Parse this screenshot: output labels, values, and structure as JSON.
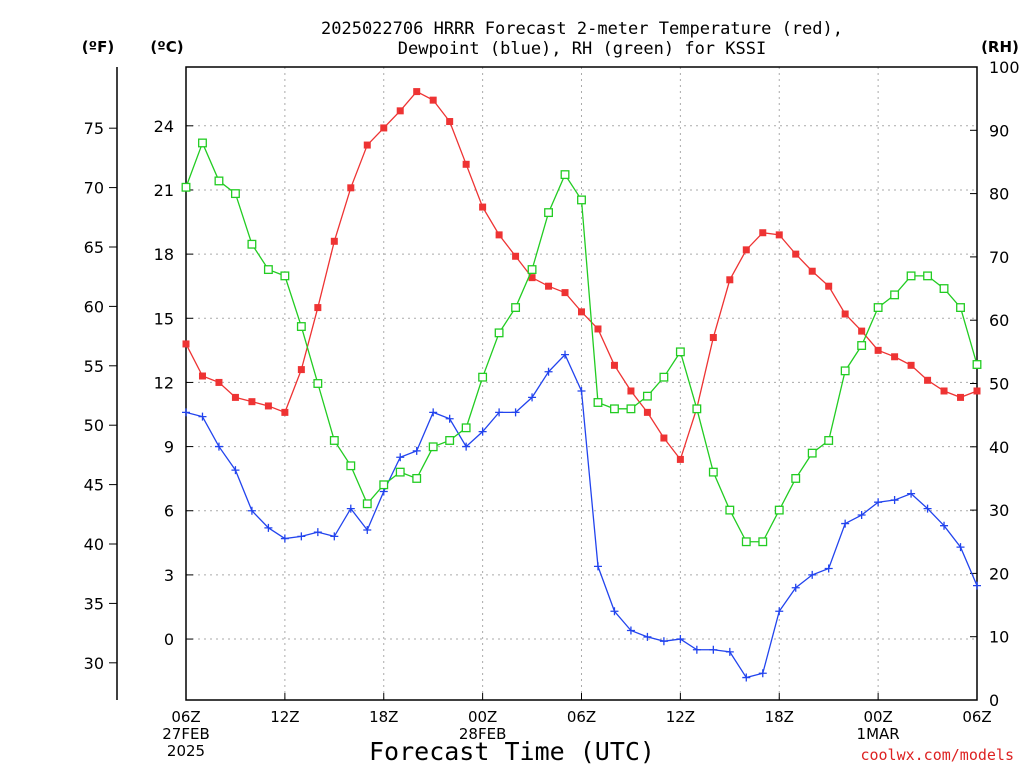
{
  "chart_data": {
    "type": "line",
    "title_line1": "2025022706 HRRR Forecast 2-meter Temperature (red),",
    "title_line2": "Dewpoint (blue), RH (green) for KSSI",
    "xlabel": "Forecast Time (UTC)",
    "credit": "coolwx.com/models",
    "unit_left_f": "(ºF)",
    "unit_left_c": "(ºC)",
    "unit_right": "(RH)",
    "y_celsius": {
      "ylim": [
        -2.85,
        26.75
      ],
      "ticks": [
        0,
        3,
        6,
        9,
        12,
        15,
        18,
        21,
        24
      ]
    },
    "y_fahrenheit": {
      "ticks": [
        30,
        35,
        40,
        45,
        50,
        55,
        60,
        65,
        70,
        75
      ]
    },
    "y_rh": {
      "ylim": [
        0,
        100
      ],
      "ticks": [
        0,
        10,
        20,
        30,
        40,
        50,
        60,
        70,
        80,
        90,
        100
      ]
    },
    "x_hours": [
      0,
      1,
      2,
      3,
      4,
      5,
      6,
      7,
      8,
      9,
      10,
      11,
      12,
      13,
      14,
      15,
      16,
      17,
      18,
      19,
      20,
      21,
      22,
      23,
      24,
      25,
      26,
      27,
      28,
      29,
      30,
      31,
      32,
      33,
      34,
      35,
      36,
      37,
      38,
      39,
      40,
      41,
      42,
      43,
      44,
      45,
      46,
      47,
      48
    ],
    "xlim": [
      0,
      48
    ],
    "x_ticks": [
      {
        "hour": 0,
        "lines": [
          "06Z",
          "27FEB",
          "2025"
        ]
      },
      {
        "hour": 6,
        "lines": [
          "12Z"
        ]
      },
      {
        "hour": 12,
        "lines": [
          "18Z"
        ]
      },
      {
        "hour": 18,
        "lines": [
          "00Z",
          "28FEB"
        ]
      },
      {
        "hour": 24,
        "lines": [
          "06Z"
        ]
      },
      {
        "hour": 30,
        "lines": [
          "12Z"
        ]
      },
      {
        "hour": 36,
        "lines": [
          "18Z"
        ]
      },
      {
        "hour": 42,
        "lines": [
          "00Z",
          "1MAR"
        ]
      },
      {
        "hour": 48,
        "lines": [
          "06Z"
        ]
      }
    ],
    "grid": true,
    "series": [
      {
        "name": "Temperature",
        "axis": "celsius",
        "color": "#ee3333",
        "marker": "square",
        "values": [
          13.8,
          12.3,
          12.0,
          11.3,
          11.1,
          10.9,
          10.6,
          12.6,
          15.5,
          18.6,
          21.1,
          23.1,
          23.9,
          24.7,
          25.6,
          25.2,
          24.2,
          22.2,
          20.2,
          18.9,
          17.9,
          16.9,
          16.5,
          16.2,
          15.3,
          14.5,
          12.8,
          11.6,
          10.6,
          9.4,
          8.4,
          10.8,
          14.1,
          16.8,
          18.2,
          19.0,
          18.9,
          18.0,
          17.2,
          16.5,
          15.2,
          14.4,
          13.5,
          13.2,
          12.8,
          12.1,
          11.6,
          11.3,
          11.6
        ]
      },
      {
        "name": "Dewpoint",
        "axis": "celsius",
        "color": "#2244ee",
        "marker": "plus",
        "values": [
          10.6,
          10.4,
          9.0,
          7.9,
          6.0,
          5.2,
          4.7,
          4.8,
          5.0,
          4.8,
          6.1,
          5.1,
          6.9,
          8.5,
          8.8,
          10.6,
          10.3,
          9.0,
          9.7,
          10.6,
          10.6,
          11.3,
          12.5,
          13.3,
          11.6,
          3.4,
          1.3,
          0.4,
          0.1,
          -0.1,
          0.0,
          -0.5,
          -0.5,
          -0.6,
          -1.8,
          -1.6,
          1.3,
          2.4,
          3.0,
          3.3,
          5.4,
          5.8,
          6.4,
          6.5,
          6.8,
          6.1,
          5.3,
          4.3,
          2.5
        ]
      },
      {
        "name": "RH",
        "axis": "rh",
        "color": "#22cc22",
        "marker": "open-square",
        "values": [
          81,
          88,
          82,
          80,
          72,
          68,
          67,
          59,
          50,
          41,
          37,
          31,
          34,
          36,
          35,
          40,
          41,
          43,
          51,
          58,
          62,
          68,
          77,
          83,
          79,
          47,
          46,
          46,
          48,
          51,
          55,
          46,
          36,
          30,
          25,
          25,
          30,
          35,
          39,
          41,
          52,
          56,
          62,
          64,
          67,
          67,
          65,
          62,
          53
        ]
      }
    ]
  }
}
